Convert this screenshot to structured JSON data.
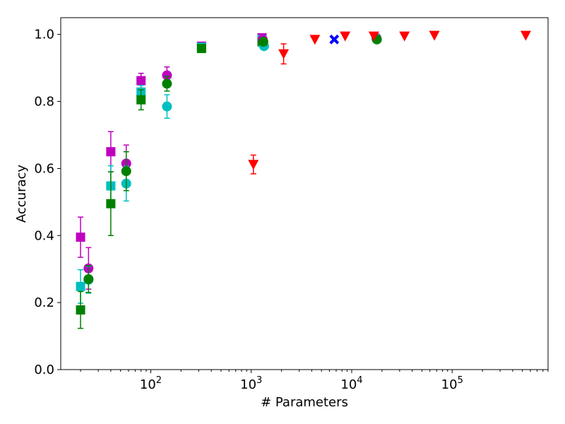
{
  "chart_data": {
    "type": "scatter",
    "title": "",
    "xlabel": "# Parameters",
    "ylabel": "Accuracy",
    "xscale": "log",
    "xlim": [
      12.7,
      900000
    ],
    "ylim": [
      0.0,
      1.05
    ],
    "grid": false,
    "x_ticks": [
      {
        "value": 100,
        "base": "10",
        "exp": "2"
      },
      {
        "value": 1000,
        "base": "10",
        "exp": "3"
      },
      {
        "value": 10000,
        "base": "10",
        "exp": "4"
      },
      {
        "value": 100000,
        "base": "10",
        "exp": "5"
      }
    ],
    "y_ticks": [
      {
        "value": 0.0,
        "label": "0.0"
      },
      {
        "value": 0.2,
        "label": "0.2"
      },
      {
        "value": 0.4,
        "label": "0.4"
      },
      {
        "value": 0.6,
        "label": "0.6"
      },
      {
        "value": 0.8,
        "label": "0.8"
      },
      {
        "value": 1.0,
        "label": "1.0"
      }
    ],
    "series": [
      {
        "marker": "square",
        "color": "#bf00bf",
        "points": [
          {
            "x": 20,
            "y": 0.395,
            "err": 0.06
          },
          {
            "x": 40,
            "y": 0.65,
            "err": 0.06
          },
          {
            "x": 80,
            "y": 0.862,
            "err": 0.022
          },
          {
            "x": 320,
            "y": 0.965,
            "err": 0.0
          },
          {
            "x": 1280,
            "y": 0.99,
            "err": 0.0
          }
        ]
      },
      {
        "marker": "square",
        "color": "#00bfbf",
        "points": [
          {
            "x": 20,
            "y": 0.248,
            "err": 0.05
          },
          {
            "x": 40,
            "y": 0.548,
            "err": 0.06
          },
          {
            "x": 80,
            "y": 0.828,
            "err": 0.02
          },
          {
            "x": 320,
            "y": 0.962,
            "err": 0.0
          },
          {
            "x": 1280,
            "y": 0.985,
            "err": 0.0
          }
        ]
      },
      {
        "marker": "square",
        "color": "#008000",
        "points": [
          {
            "x": 20,
            "y": 0.178,
            "err": 0.055
          },
          {
            "x": 40,
            "y": 0.495,
            "err": 0.095
          },
          {
            "x": 80,
            "y": 0.805,
            "err": 0.03
          },
          {
            "x": 320,
            "y": 0.958,
            "err": 0.0
          },
          {
            "x": 1280,
            "y": 0.978,
            "err": 0.0
          }
        ]
      },
      {
        "marker": "circle",
        "color": "#bf00bf",
        "points": [
          {
            "x": 24,
            "y": 0.302,
            "err": 0.062
          },
          {
            "x": 57,
            "y": 0.615,
            "err": 0.055
          },
          {
            "x": 145,
            "y": 0.878,
            "err": 0.025
          },
          {
            "x": 1300,
            "y": 0.985,
            "err": 0.0
          },
          {
            "x": 17600,
            "y": 0.99,
            "err": 0.0
          }
        ]
      },
      {
        "marker": "circle",
        "color": "#00bfbf",
        "points": [
          {
            "x": 24,
            "y": 0.268,
            "err": 0.04
          },
          {
            "x": 57,
            "y": 0.555,
            "err": 0.052
          },
          {
            "x": 145,
            "y": 0.785,
            "err": 0.035
          },
          {
            "x": 1340,
            "y": 0.965,
            "err": 0.0
          },
          {
            "x": 17600,
            "y": 0.988,
            "err": 0.0
          }
        ]
      },
      {
        "marker": "circle",
        "color": "#008000",
        "points": [
          {
            "x": 24,
            "y": 0.27,
            "err": 0.04
          },
          {
            "x": 57,
            "y": 0.592,
            "err": 0.058
          },
          {
            "x": 145,
            "y": 0.853,
            "err": 0.022
          },
          {
            "x": 1320,
            "y": 0.978,
            "err": 0.0
          },
          {
            "x": 17800,
            "y": 0.985,
            "err": 0.0
          }
        ]
      },
      {
        "marker": "triangle-down",
        "color": "#ff0000",
        "points": [
          {
            "x": 1050,
            "y": 0.612,
            "err": 0.028
          },
          {
            "x": 2100,
            "y": 0.942,
            "err": 0.03
          },
          {
            "x": 4300,
            "y": 0.985,
            "err": 0.0
          },
          {
            "x": 8600,
            "y": 0.995,
            "err": 0.0
          },
          {
            "x": 16600,
            "y": 0.995,
            "err": 0.0
          },
          {
            "x": 33500,
            "y": 0.995,
            "err": 0.0
          },
          {
            "x": 66500,
            "y": 0.997,
            "err": 0.0
          },
          {
            "x": 540000,
            "y": 0.997,
            "err": 0.0
          }
        ]
      },
      {
        "marker": "x",
        "color": "#0000ff",
        "points": [
          {
            "x": 6700,
            "y": 0.985,
            "err": 0.0
          }
        ]
      }
    ]
  }
}
